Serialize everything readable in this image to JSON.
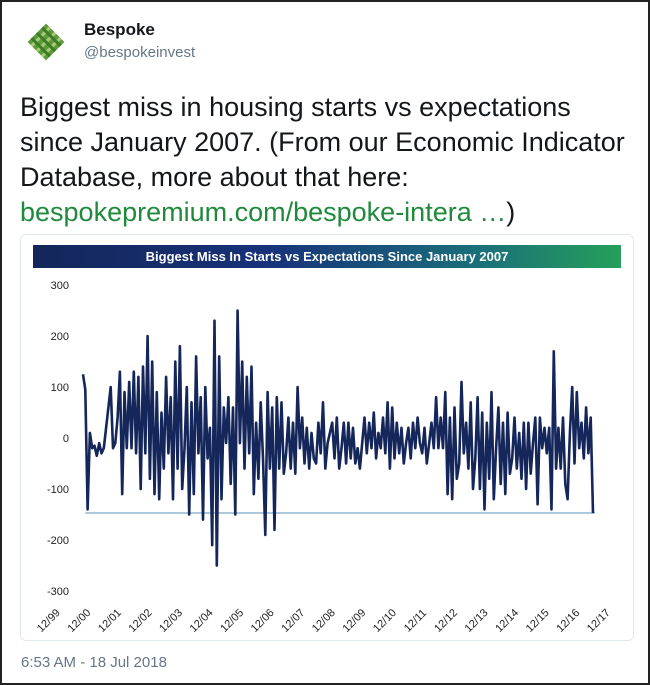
{
  "tweet": {
    "author_name": "Bespoke",
    "author_handle": "@bespokeinvest",
    "text_plain": "Biggest miss in housing starts vs expectations since January 2007. (From our Economic Indicator Database, more about that here: ",
    "text_link": "bespokepremium.com/bespoke-intera …",
    "text_tail": ")",
    "timestamp": "6:53 AM - 18 Jul 2018",
    "link_color": "#1f8a3c"
  },
  "icons": {
    "avatar": "bespoke-logo-icon"
  },
  "chart_data": {
    "type": "line",
    "title": "Biggest Miss In Starts vs Expectations Since January 2007",
    "xlabel": "",
    "ylabel": "",
    "ylim": [
      -300,
      300
    ],
    "yticks": [
      300,
      200,
      100,
      0,
      -100,
      -200,
      -300
    ],
    "xticks": [
      "12/99",
      "12/00",
      "12/01",
      "12/02",
      "12/03",
      "12/04",
      "12/05",
      "12/06",
      "12/07",
      "12/08",
      "12/09",
      "12/10",
      "12/11",
      "12/12",
      "12/13",
      "12/14",
      "12/15",
      "12/16",
      "12/17"
    ],
    "x_start_label": "12/99",
    "series_color": "#14265a",
    "reference_line": {
      "value": -147,
      "color": "#5b8fb9"
    },
    "series": [
      {
        "values": [
          125,
          95,
          -140,
          10,
          -20,
          -15,
          -35,
          -10,
          -30,
          -20,
          20,
          60,
          100,
          -20,
          -10,
          40,
          130,
          -110,
          90,
          -20,
          110,
          -20,
          130,
          -30,
          120,
          -100,
          140,
          -30,
          200,
          -80,
          150,
          -110,
          90,
          -120,
          50,
          -60,
          120,
          -30,
          80,
          -120,
          150,
          -60,
          180,
          -100,
          -20,
          100,
          -150,
          70,
          -110,
          160,
          -30,
          80,
          -160,
          100,
          -40,
          20,
          -210,
          230,
          -250,
          160,
          -120,
          60,
          -10,
          80,
          -90,
          60,
          -150,
          250,
          -10,
          150,
          -60,
          120,
          -30,
          140,
          -110,
          30,
          -80,
          70,
          -40,
          -190,
          90,
          -60,
          60,
          -180,
          80,
          -60,
          70,
          -70,
          -30,
          40,
          -60,
          30,
          -70,
          100,
          -20,
          40,
          -50,
          20,
          -60,
          10,
          -40,
          -50,
          30,
          -30,
          70,
          -60,
          -10,
          10,
          30,
          -40,
          40,
          -60,
          -20,
          30,
          -50,
          30,
          -40,
          20,
          -50,
          -20,
          -60,
          -10,
          40,
          -30,
          30,
          -20,
          50,
          -40,
          10,
          -20,
          40,
          -30,
          70,
          -60,
          60,
          -40,
          30,
          -30,
          20,
          -50,
          -10,
          20,
          -40,
          30,
          -20,
          40,
          -10,
          -30,
          20,
          -50,
          -10,
          30,
          -20,
          80,
          -20,
          40,
          -20,
          90,
          -110,
          40,
          -120,
          60,
          -80,
          -50,
          110,
          -30,
          30,
          -60,
          70,
          -100,
          -40,
          80,
          -100,
          50,
          -140,
          30,
          -80,
          90,
          -120,
          -20,
          60,
          -90,
          30,
          -110,
          50,
          -70,
          -40,
          40,
          -60,
          10,
          -80,
          30,
          -100,
          30,
          -70,
          -10,
          40,
          -130,
          40,
          -20,
          20,
          -30,
          20,
          -140,
          170,
          -60,
          20,
          -60,
          40,
          -90,
          -120,
          10,
          100,
          -50,
          90,
          -20,
          30,
          -40,
          60,
          -30,
          40,
          -147
        ]
      }
    ]
  }
}
